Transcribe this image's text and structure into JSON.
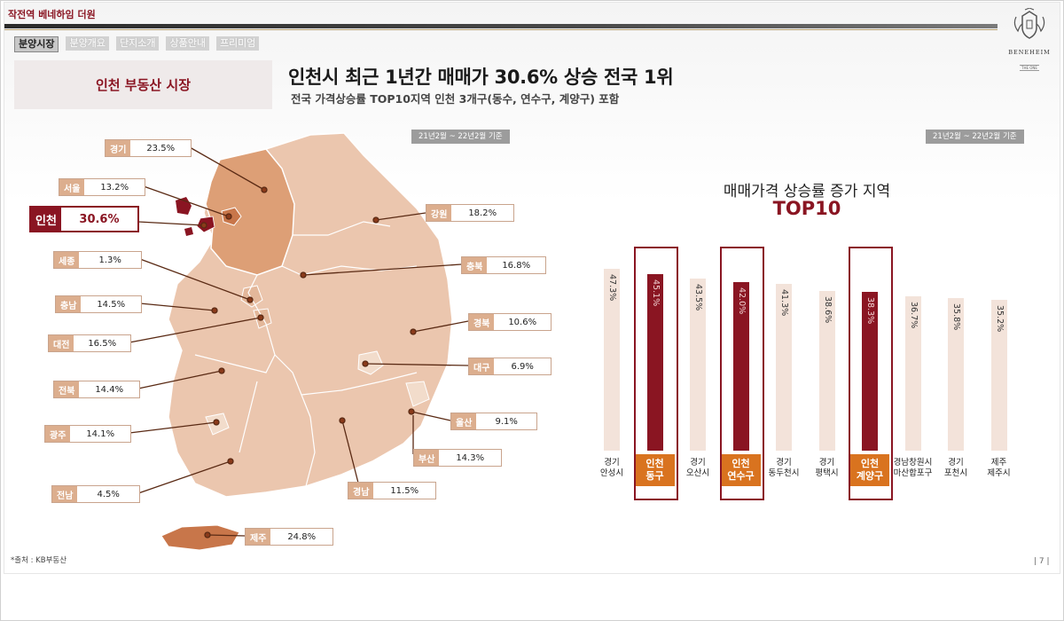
{
  "header": {
    "brand": "작전역 베네하임 더원"
  },
  "logo": {
    "name": "BENEHEIM",
    "sub": "THE ONE"
  },
  "nav": {
    "tabs": [
      "분양시장",
      "분양개요",
      "단지소개",
      "상품안내",
      "프리미엄"
    ]
  },
  "section_label": "인천 부동산 시장",
  "headline": "인천시 최근 1년간 매매가 30.6% 상승 전국 1위",
  "subheadline": "전국 가격상승률  TOP10지역 인천 3개구(동수, 연수구, 계양구) 포함",
  "date_tag_map": "21년2월 ~ 22년2월 기준",
  "date_tag_chart": "21년2월 ~ 22년2월 기준",
  "source": "*출처 : KB부동산",
  "page_num": "| 7 |",
  "regions": [
    {
      "name": "경기",
      "value": "23.5%"
    },
    {
      "name": "서울",
      "value": "13.2%"
    },
    {
      "name": "인천",
      "value": "30.6%"
    },
    {
      "name": "세종",
      "value": "1.3%"
    },
    {
      "name": "충남",
      "value": "14.5%"
    },
    {
      "name": "대전",
      "value": "16.5%"
    },
    {
      "name": "전북",
      "value": "14.4%"
    },
    {
      "name": "광주",
      "value": "14.1%"
    },
    {
      "name": "전남",
      "value": "4.5%"
    },
    {
      "name": "제주",
      "value": "24.8%"
    },
    {
      "name": "강원",
      "value": "18.2%"
    },
    {
      "name": "충북",
      "value": "16.8%"
    },
    {
      "name": "경북",
      "value": "10.6%"
    },
    {
      "name": "대구",
      "value": "6.9%"
    },
    {
      "name": "울산",
      "value": "9.1%"
    },
    {
      "name": "부산",
      "value": "14.3%"
    },
    {
      "name": "경남",
      "value": "11.5%"
    }
  ],
  "chart_title": "매매가격 상승률 증가 지역",
  "chart_subtitle": "TOP10",
  "chart_data": {
    "type": "bar",
    "categories": [
      "경기 안성시",
      "인천 동구",
      "경기 오산시",
      "인천 연수구",
      "경기 동두천시",
      "경기 평택시",
      "인천 계양구",
      "경남창원시 마산합포구",
      "경기 포천시",
      "제주 제주시"
    ],
    "category_lines": [
      [
        "경기",
        "안성시"
      ],
      [
        "인천",
        "동구"
      ],
      [
        "경기",
        "오산시"
      ],
      [
        "인천",
        "연수구"
      ],
      [
        "경기",
        "동두천시"
      ],
      [
        "경기",
        "평택시"
      ],
      [
        "인천",
        "계양구"
      ],
      [
        "경남창원시",
        "마산합포구"
      ],
      [
        "경기",
        "포천시"
      ],
      [
        "제주",
        "제주시"
      ]
    ],
    "values": [
      47.3,
      45.1,
      43.5,
      42.0,
      41.3,
      38.6,
      38.3,
      36.7,
      35.8,
      35.2
    ],
    "value_labels": [
      "47.3%",
      "45.1%",
      "43.5%",
      "42.0%",
      "41.3%",
      "38.6%",
      "38.3%",
      "36.7%",
      "35.8%",
      "35.2%"
    ],
    "highlighted": [
      false,
      true,
      false,
      true,
      false,
      false,
      true,
      false,
      false,
      false
    ],
    "colors": {
      "normal": "#f3e3da",
      "highlight": "#8a1522",
      "label_highlight": "#d9731f"
    }
  }
}
